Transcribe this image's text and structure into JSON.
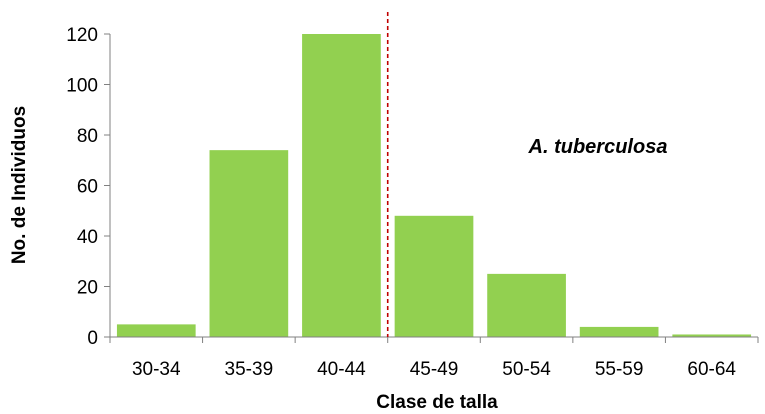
{
  "chart_data": {
    "type": "bar",
    "categories": [
      "30-34",
      "35-39",
      "40-44",
      "45-49",
      "50-54",
      "55-59",
      "60-64"
    ],
    "values": [
      5,
      74,
      120,
      48,
      25,
      4,
      1
    ],
    "title": "",
    "xlabel": "Clase de talla",
    "ylabel": "No. de Individuos",
    "ylim": [
      0,
      120
    ],
    "yticks": [
      "0",
      "20",
      "40",
      "60",
      "80",
      "100",
      "120"
    ],
    "annotation": "A. tuberculosa",
    "reference_line": {
      "position": "between 40-44 and 45-49",
      "style": "dashed"
    },
    "grid": false,
    "legend": "none",
    "colors": {
      "bar": "#92d050",
      "reference_line": "#c00000",
      "axis": "#808080"
    }
  }
}
